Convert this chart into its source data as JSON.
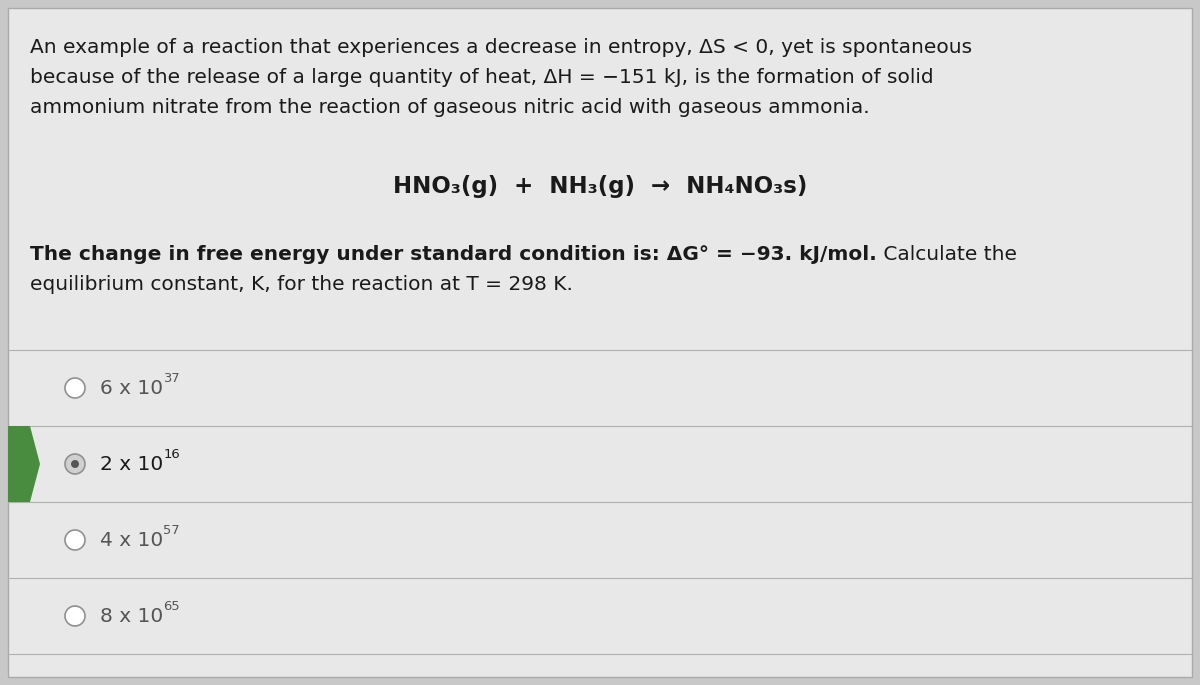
{
  "bg_color": "#c8c8c8",
  "card_color": "#e8e8e8",
  "text_color": "#1a1a1a",
  "dim_text_color": "#555555",
  "para1_line1": "An example of a reaction that experiences a decrease in entropy, ΔS < 0, yet is spontaneous",
  "para1_line2": "because of the release of a large quantity of heat, ΔH = −151 kJ, is the formation of solid",
  "para1_line3": "ammonium nitrate from the reaction of gaseous nitric acid with gaseous ammonia.",
  "equation": "HNO₃(g)  +  NH₃(g)  →  NH₄NO₃s)",
  "para2_line1_bold": "The change in free energy under standard condition is: ΔG° = −93. kJ/mol.",
  "para2_line1_normal": " Calculate the",
  "para2_line2": "equilibrium constant, K, for the reaction at T = 298 K.",
  "options": [
    {
      "label": "6 x 10",
      "superscript": "37",
      "selected": false
    },
    {
      "label": "2 x 10",
      "superscript": "16",
      "selected": true
    },
    {
      "label": "4 x 10",
      "superscript": "57",
      "selected": false
    },
    {
      "label": "8 x 10",
      "superscript": "65",
      "selected": false
    }
  ],
  "selected_color": "#4a8c3f",
  "divider_color": "#b0b0b0",
  "selected_dot_color": "#555555"
}
